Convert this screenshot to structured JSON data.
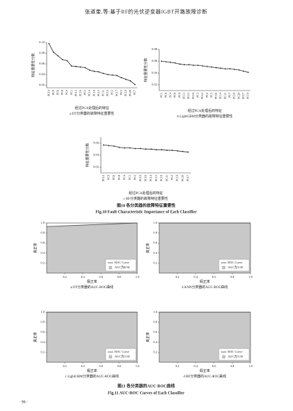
{
  "header": {
    "title": "张道奎,等:基于RF的光伏逆变器IGBT开路故障诊断"
  },
  "chart_data": [
    {
      "type": "line",
      "color": "#222222",
      "categories": [
        "PC10",
        "PC9",
        "PC6",
        "PC8",
        "PC4",
        "PC1",
        "PC13",
        "PC16",
        "PC3",
        "PC14",
        "PC18",
        "PC15",
        "PC11",
        "PC12",
        "PC2",
        "PC17",
        "PC5",
        "PC19",
        "PC20",
        "PC7"
      ],
      "values": [
        0.098,
        0.082,
        0.075,
        0.068,
        0.066,
        0.056,
        0.055,
        0.054,
        0.053,
        0.048,
        0.046,
        0.045,
        0.042,
        0.04,
        0.039,
        0.038,
        0.034,
        0.031,
        0.028,
        0.021
      ],
      "ylim": [
        0.015,
        0.1
      ],
      "yticks": [
        0.02,
        0.04,
        0.06,
        0.08,
        {
          "value": 0.1,
          "label": "0.10"
        }
      ],
      "y_label": "特征重要性分数",
      "x_label": "经过PCA处理后的特征",
      "caption": "a DT分类器的故障特征重要性"
    },
    {
      "type": "line",
      "color": "#222222",
      "categories": [
        "PC1",
        "PC6",
        "PC4",
        "PC8",
        "PC9",
        "PC13",
        "PC15",
        "PC10",
        "PC3",
        "PC12",
        "PC2",
        "PC5",
        "PC16",
        "PC14",
        "PC11",
        "PC7",
        "PC18",
        "PC20",
        "PC17",
        "PC19"
      ],
      "values": [
        0.06,
        0.059,
        0.058,
        0.057,
        0.055,
        0.054,
        0.054,
        0.053,
        0.053,
        0.052,
        0.051,
        0.05,
        0.049,
        0.048,
        0.047,
        0.047,
        0.046,
        0.045,
        0.043,
        0.041
      ],
      "ylim": [
        0.01,
        0.08
      ],
      "yticks": [
        0.02,
        0.04,
        0.06,
        0.08
      ],
      "y_label": "特征重要性分数",
      "x_label": "经过PCA处理后的特征",
      "caption": "b LightGBM分类器的故障特征重要性"
    },
    {
      "type": "line",
      "color": "#222222",
      "categories": [
        "PC12",
        "PC9",
        "PC6",
        "PC8",
        "PC4",
        "PC3",
        "PC5",
        "PC10",
        "PC16",
        "PC14",
        "PC13",
        "PC18",
        "PC11",
        "PC2",
        "PC19",
        "PC20",
        "PC17"
      ],
      "values": [
        0.057,
        0.056,
        0.055,
        0.053,
        0.052,
        0.052,
        0.051,
        0.051,
        0.05,
        0.05,
        0.049,
        0.049,
        0.048,
        0.048,
        0.047,
        0.046,
        0.045
      ],
      "ylim": [
        0.01,
        0.07
      ],
      "yticks": [
        0.02,
        0.04,
        0.06
      ],
      "y_label": "特征重要性分数",
      "x_label": "经过PCA处理后的特征",
      "caption": "c RF分类器的故障特征重要性"
    },
    {
      "type": "area",
      "fill": "#c8c8c8",
      "x": [
        0,
        1
      ],
      "series": [
        {
          "name": "ROC Curve",
          "color": "#444444",
          "values": [
            0.93,
            1
          ]
        }
      ],
      "area_label": "AUC为0.96",
      "xlim": [
        0,
        1
      ],
      "ylim": [
        0,
        1
      ],
      "xticks": [
        0.2,
        0.4,
        0.6,
        0.8,
        {
          "value": 1,
          "label": "1.0"
        }
      ],
      "yticks": [
        0.2,
        0.4,
        0.6,
        0.8,
        {
          "value": 1,
          "label": "1.0"
        }
      ],
      "x_label": "假正率",
      "y_label": "真正率",
      "caption": "a DT分类器的AUC-ROC曲线"
    },
    {
      "type": "area",
      "fill": "#c8c8c8",
      "x": [
        0,
        1
      ],
      "series": [
        {
          "name": "ROC Curve",
          "color": "#444444",
          "values": [
            1,
            1
          ]
        }
      ],
      "area_label": "AUC为1.00",
      "xlim": [
        0,
        1
      ],
      "ylim": [
        0,
        1
      ],
      "xticks": [
        0.2,
        0.4,
        0.6,
        0.8,
        {
          "value": 1,
          "label": "1.0"
        }
      ],
      "yticks": [
        0.2,
        0.4,
        0.6,
        0.8,
        {
          "value": 1,
          "label": "1.0"
        }
      ],
      "x_label": "假正率",
      "y_label": "真正率",
      "caption": "b KNN分类器的AUC-ROC曲线"
    },
    {
      "type": "area",
      "fill": "#c8c8c8",
      "x": [
        0,
        1
      ],
      "series": [
        {
          "name": "ROC Curve",
          "color": "#444444",
          "values": [
            1,
            1
          ]
        }
      ],
      "area_label": "AUC为1.00",
      "xlim": [
        0,
        1
      ],
      "ylim": [
        0,
        1
      ],
      "xticks": [
        0.2,
        0.4,
        0.6,
        0.8,
        {
          "value": 1,
          "label": "1.0"
        }
      ],
      "yticks": [
        0.2,
        0.4,
        0.6,
        0.8,
        {
          "value": 1,
          "label": "1.0"
        }
      ],
      "x_label": "假正率",
      "y_label": "真正率",
      "caption": "c LightGBM分类器的AUC-ROC曲线"
    },
    {
      "type": "area",
      "fill": "#c8c8c8",
      "x": [
        0,
        1
      ],
      "series": [
        {
          "name": "ROC Curve",
          "color": "#444444",
          "values": [
            1,
            1
          ]
        }
      ],
      "area_label": "AUC为1.00",
      "xlim": [
        0,
        1
      ],
      "ylim": [
        0,
        1
      ],
      "xticks": [
        0.2,
        0.4,
        0.6,
        0.8,
        {
          "value": 1,
          "label": "1.0"
        }
      ],
      "yticks": [
        0.2,
        0.4,
        0.6,
        0.8,
        {
          "value": 1,
          "label": "1.0"
        }
      ],
      "x_label": "假正率",
      "y_label": "真正率",
      "caption": "d RF分类器的AUC-ROC曲线"
    }
  ],
  "figures": [
    {
      "title": "图10 各分类器的故障特征重要性",
      "title_en": "Fig.10 Fault Characteristic Importance of Each Classifier"
    },
    {
      "title": "图11 各分类器的AUC-ROC曲线",
      "title_en": "Fig.11 AUC-ROC Curves of Each Classifier"
    }
  ],
  "page_number": "· 96 ·"
}
